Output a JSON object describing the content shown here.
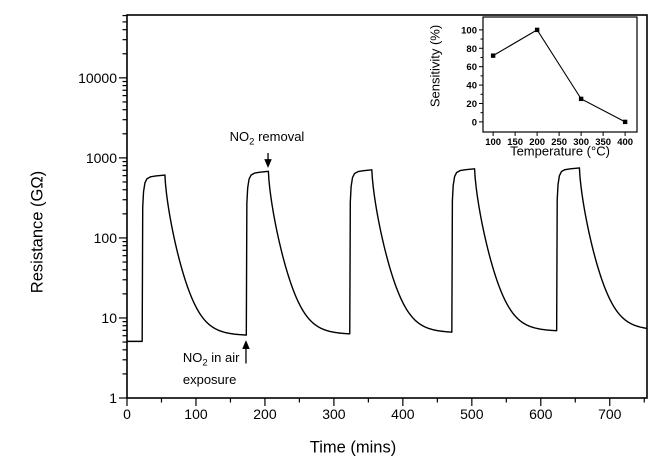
{
  "figure": {
    "background": "#ffffff",
    "line_color": "#000000",
    "text_color": "#000000"
  },
  "chart_data": [
    {
      "id": "main",
      "type": "line",
      "title": "",
      "xlabel": "Time (mins)",
      "ylabel": "Resistance (GΩ)",
      "yscale": "log",
      "xlim": [
        0,
        754
      ],
      "ylim": [
        1,
        61000
      ],
      "x_major_ticks": [
        0,
        100,
        200,
        300,
        400,
        500,
        600,
        700
      ],
      "x_minor_step": 50,
      "y_major_ticks": [
        1,
        10,
        100,
        1000,
        10000
      ],
      "grid": false,
      "legend": "none",
      "initial_baseline_R": 5.1,
      "cycles": [
        {
          "exposure_t": 22,
          "removal_t": 55,
          "peak_R": 610,
          "decay_floor_R": 6.0
        },
        {
          "exposure_t": 173,
          "removal_t": 205,
          "peak_R": 680,
          "decay_floor_R": 6.2
        },
        {
          "exposure_t": 323,
          "removal_t": 355,
          "peak_R": 710,
          "decay_floor_R": 6.5
        },
        {
          "exposure_t": 471,
          "removal_t": 504,
          "peak_R": 730,
          "decay_floor_R": 6.8
        },
        {
          "exposure_t": 623,
          "removal_t": 656,
          "peak_R": 750,
          "decay_floor_R": 7.0
        }
      ],
      "rise_profile": [
        [
          0.8,
          0.4
        ],
        [
          2,
          0.62
        ],
        [
          4,
          0.8
        ],
        [
          7,
          0.9
        ],
        [
          12,
          0.95
        ],
        [
          20,
          0.975
        ]
      ],
      "decay_tau": 5.5,
      "decay_beta": 0.7,
      "annotations": [
        {
          "prefix": "NO",
          "sub": "2",
          "suffix": " removal",
          "line2": "",
          "label_t": 203,
          "label_R": 1800,
          "label2_R": null,
          "arrow_t": 204.5,
          "arrow_tail_R": 1150,
          "arrow_tip_R": 760,
          "direction": "down",
          "align": "center"
        },
        {
          "prefix": "NO",
          "sub": "2",
          "suffix": " in air",
          "line2": "exposure",
          "label_t": 81,
          "label_R": 3.2,
          "label2_R": 1.85,
          "arrow_t": 172.5,
          "arrow_tail_R": 2.7,
          "arrow_tip_R": 5.2,
          "direction": "up",
          "align": "left"
        }
      ]
    },
    {
      "id": "inset",
      "type": "line",
      "title": "",
      "xlabel": "Temperature (°C)",
      "ylabel": "Sensitivity (%)",
      "x": [
        100,
        200,
        300,
        400
      ],
      "y": [
        72,
        100,
        25,
        0
      ],
      "x_ticks": [
        100,
        150,
        200,
        250,
        300,
        350,
        400
      ],
      "y_ticks": [
        0,
        20,
        40,
        60,
        80,
        100
      ],
      "y_minor_step": 10,
      "xlim": [
        77,
        427
      ],
      "ylim": [
        -11,
        114
      ],
      "marker": "square",
      "grid": false
    }
  ]
}
